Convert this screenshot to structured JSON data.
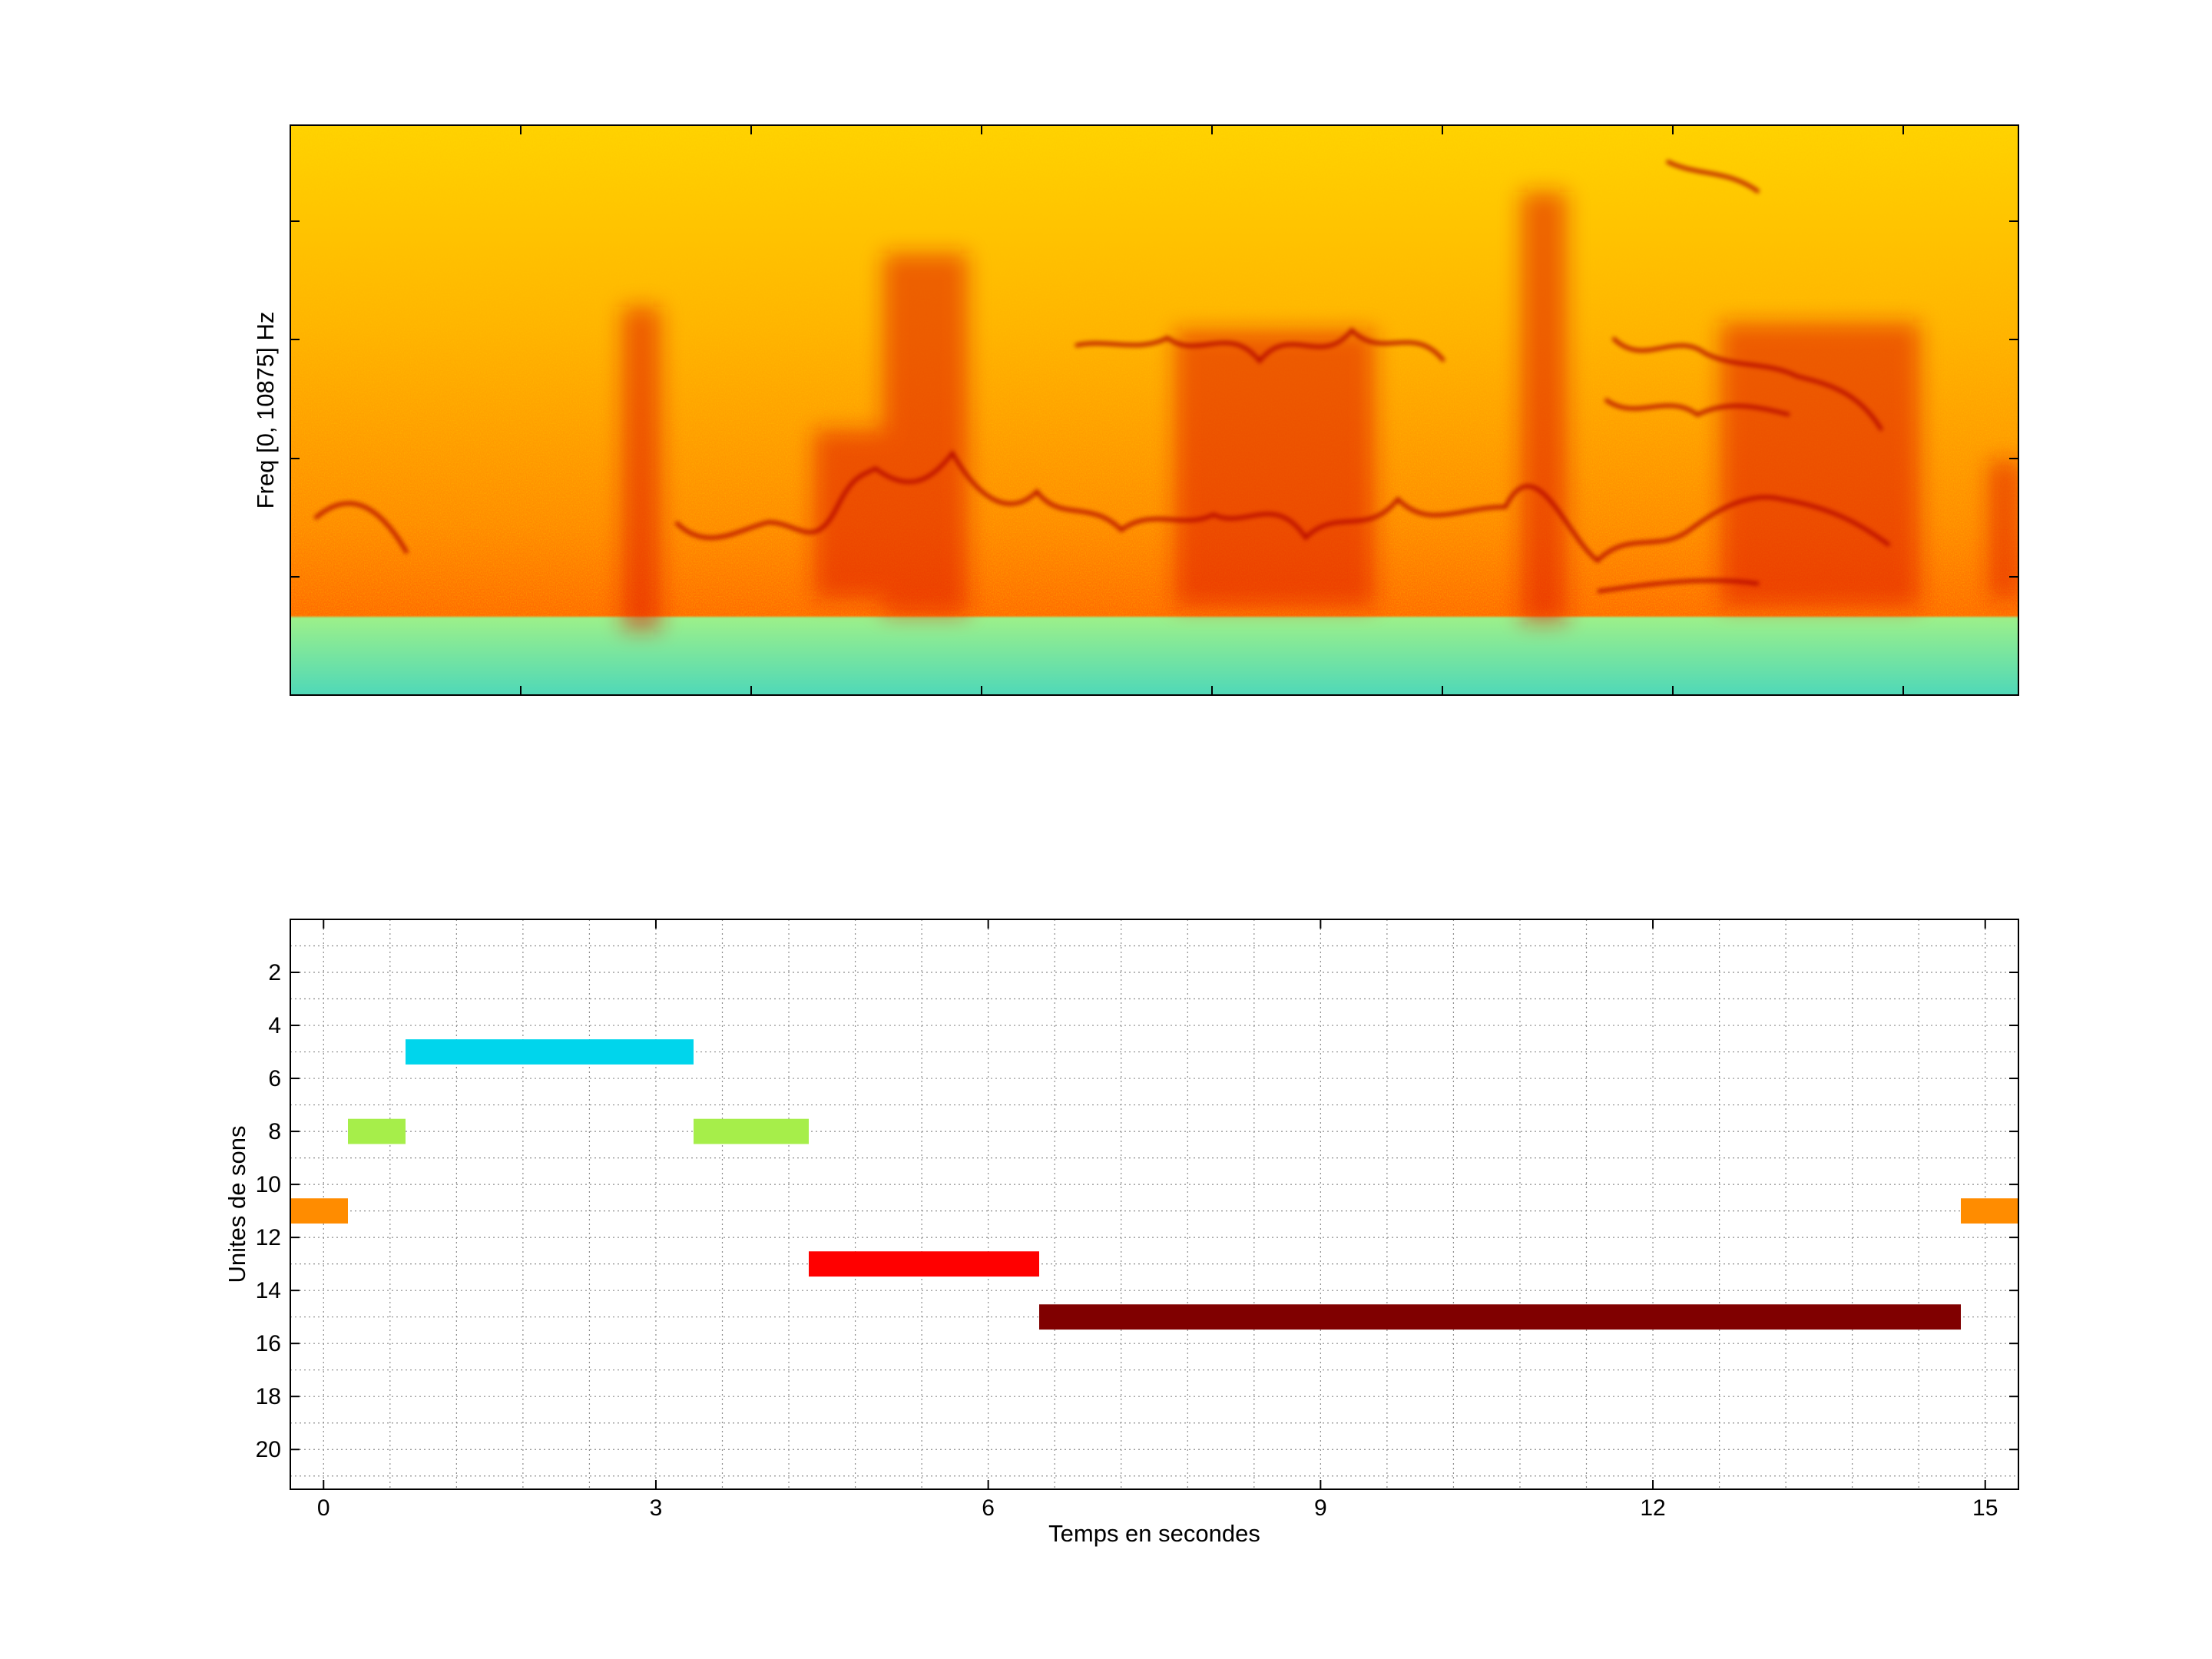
{
  "chart_data": [
    {
      "type": "heatmap",
      "title": "",
      "xlabel": "",
      "ylabel": "Freq [0, 10875] Hz",
      "ylim": [
        0,
        10875
      ],
      "x_tick_labels": [],
      "y_tick_labels": [],
      "colormap": "jet",
      "noise_floor_color": "#70e8a0",
      "signal_color": "#ffb000",
      "peak_color": "#c81400",
      "grid": false
    },
    {
      "type": "bar",
      "orientation": "horizontal",
      "title": "",
      "xlabel": "Temps en secondes",
      "ylabel": "Unites de sons",
      "xlim": [
        -0.3,
        15.3
      ],
      "ylim": [
        21.5,
        0
      ],
      "x_ticks": [
        0,
        3,
        6,
        9,
        12,
        15
      ],
      "y_ticks": [
        2,
        4,
        6,
        8,
        10,
        12,
        14,
        16,
        18,
        20
      ],
      "grid": true,
      "series": [
        {
          "unit": 11,
          "start": -0.3,
          "end": 0.22,
          "color": "#ff8c00"
        },
        {
          "unit": 8,
          "start": 0.22,
          "end": 0.74,
          "color": "#a6ee4a"
        },
        {
          "unit": 5,
          "start": 0.74,
          "end": 3.34,
          "color": "#00d5ec"
        },
        {
          "unit": 8,
          "start": 3.34,
          "end": 4.38,
          "color": "#a6ee4a"
        },
        {
          "unit": 13,
          "start": 4.38,
          "end": 6.46,
          "color": "#ff0000"
        },
        {
          "unit": 15,
          "start": 6.46,
          "end": 14.78,
          "color": "#800000"
        },
        {
          "unit": 11,
          "start": 14.78,
          "end": 15.3,
          "color": "#ff8c00"
        }
      ]
    }
  ]
}
